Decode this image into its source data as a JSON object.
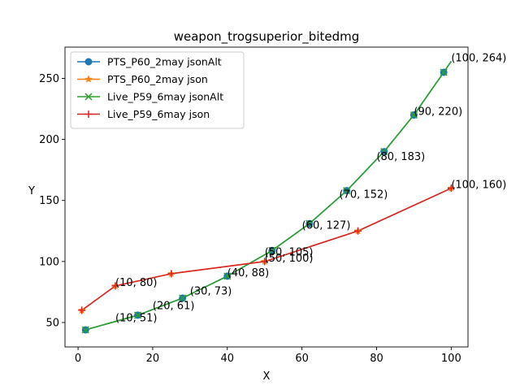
{
  "chart_data": {
    "type": "line",
    "title": "weapon_trogsuperior_bitedmg",
    "xlabel": "X",
    "ylabel": "Y",
    "xlim": [
      -3.5,
      104.5
    ],
    "ylim": [
      30,
      275.6
    ],
    "xticks": [
      0,
      20,
      40,
      60,
      80,
      100
    ],
    "yticks": [
      50,
      100,
      150,
      200,
      250
    ],
    "grid": false,
    "legend_position": "top-left",
    "series": [
      {
        "name": "PTS_P60_2may jsonAlt",
        "color": "#1f77b4",
        "marker": "circle",
        "x": [
          2,
          16,
          28,
          40,
          52,
          62,
          72,
          82,
          90,
          98,
          100
        ],
        "y": [
          44,
          56,
          70,
          88,
          109,
          131,
          158,
          190,
          220,
          255,
          264
        ],
        "marked": [
          true,
          true,
          true,
          true,
          true,
          true,
          true,
          true,
          true,
          true,
          false
        ]
      },
      {
        "name": "PTS_P60_2may json",
        "color": "#ff7f0e",
        "marker": "star",
        "x": [
          1,
          10,
          25,
          50,
          75,
          100
        ],
        "y": [
          60,
          80,
          90,
          100,
          125,
          160
        ],
        "marked": [
          true,
          true,
          true,
          true,
          true,
          true
        ]
      },
      {
        "name": "Live_P59_6may jsonAlt",
        "color": "#2ca02c",
        "marker": "x",
        "x": [
          2,
          16,
          28,
          40,
          52,
          62,
          72,
          82,
          90,
          98,
          100
        ],
        "y": [
          44,
          56,
          70,
          88,
          109,
          131,
          158,
          190,
          220,
          255,
          264
        ],
        "marked": [
          true,
          true,
          true,
          true,
          true,
          true,
          true,
          true,
          true,
          true,
          false
        ]
      },
      {
        "name": "Live_P59_6may json",
        "color": "#d62728",
        "marker": "plus",
        "x": [
          1,
          10,
          25,
          50,
          75,
          100
        ],
        "y": [
          60,
          80,
          90,
          100,
          125,
          160
        ],
        "marked": [
          true,
          true,
          true,
          true,
          true,
          true
        ]
      }
    ],
    "annotations": [
      {
        "text": "(10, 51)",
        "x": 10,
        "y": 51
      },
      {
        "text": "(20, 61)",
        "x": 20,
        "y": 61
      },
      {
        "text": "(30, 73)",
        "x": 30,
        "y": 73
      },
      {
        "text": "(40, 88)",
        "x": 40,
        "y": 88
      },
      {
        "text": "(50, 105)",
        "x": 50,
        "y": 105
      },
      {
        "text": "(60, 127)",
        "x": 60,
        "y": 127
      },
      {
        "text": "(70, 152)",
        "x": 70,
        "y": 152
      },
      {
        "text": "(80, 183)",
        "x": 80,
        "y": 183
      },
      {
        "text": "(90, 220)",
        "x": 90,
        "y": 220
      },
      {
        "text": "(100, 264)",
        "x": 100,
        "y": 264
      },
      {
        "text": "(10, 80)",
        "x": 10,
        "y": 80
      },
      {
        "text": "(50, 100)",
        "x": 50,
        "y": 100
      },
      {
        "text": "(100, 160)",
        "x": 100,
        "y": 160
      }
    ]
  }
}
